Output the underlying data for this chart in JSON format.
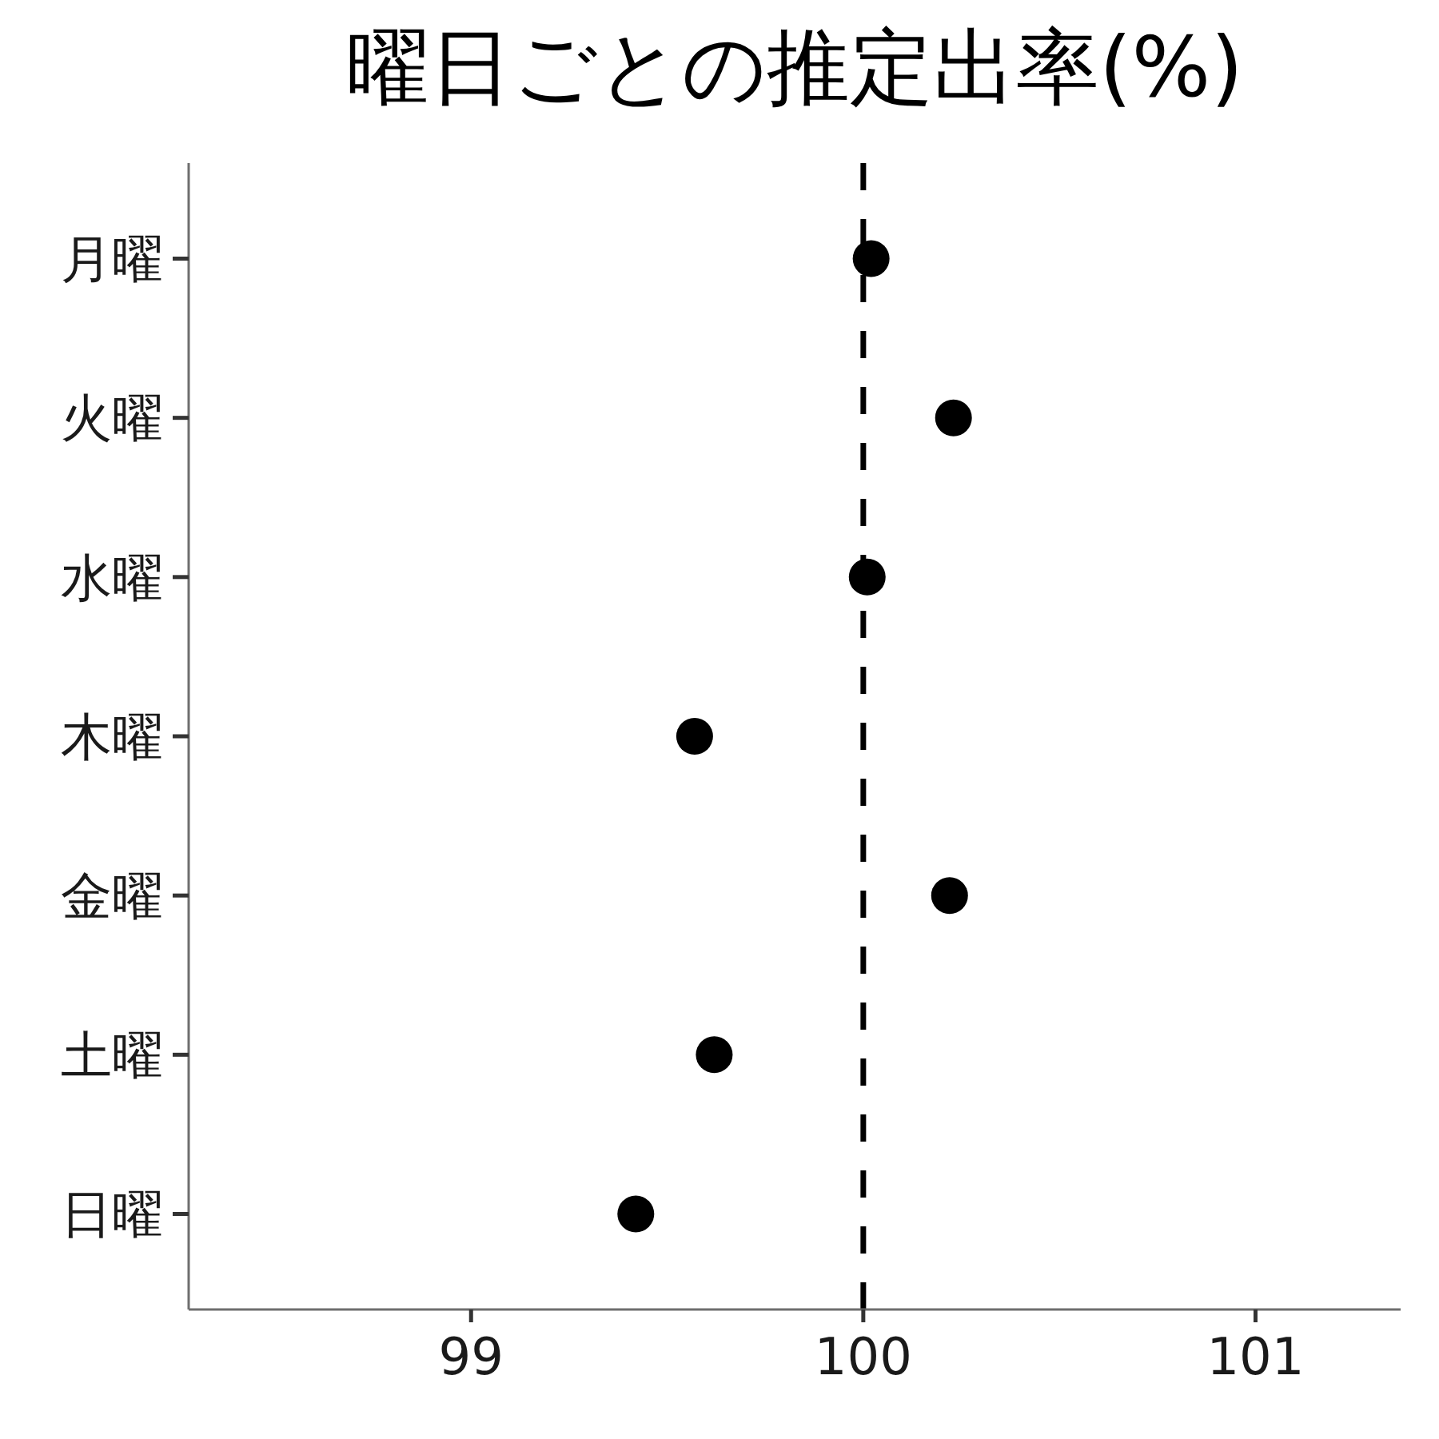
{
  "chart_data": {
    "type": "scatter",
    "title": "曜日ごとの推定出率(%)",
    "categories": [
      "月曜",
      "火曜",
      "水曜",
      "木曜",
      "金曜",
      "土曜",
      "日曜"
    ],
    "values": [
      100.02,
      100.23,
      100.01,
      99.57,
      100.22,
      99.62,
      99.42
    ],
    "color": "#000000",
    "orientation": "horizontal",
    "marker": "circle",
    "xlim": [
      98.28,
      101.37
    ],
    "xticks": [
      99,
      100,
      101
    ],
    "ref_lines": [
      {
        "axis": "x",
        "value": 100,
        "line_style": "dashed",
        "color": "#000000"
      }
    ],
    "grid": false,
    "legend": false
  }
}
